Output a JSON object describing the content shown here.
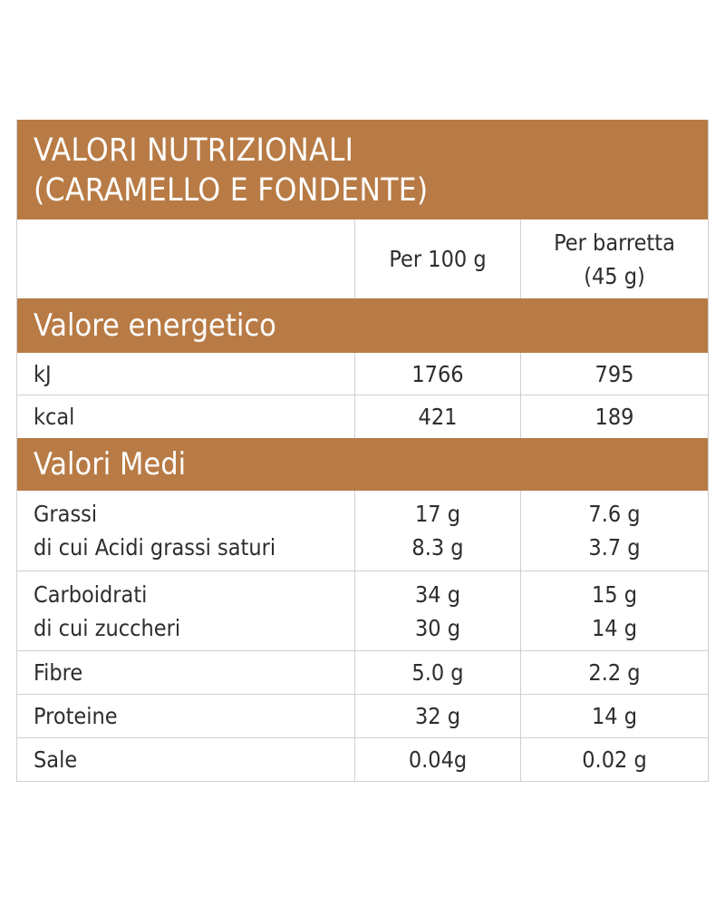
{
  "title": {
    "line1": "VALORI NUTRIZIONALI",
    "line2": "(CARAMELLO E FONDENTE)"
  },
  "columns": {
    "per_100g": "Per 100 g",
    "per_bar_line1": "Per barretta",
    "per_bar_line2": "(45 g)"
  },
  "energy": {
    "heading": "Valore energetico",
    "rows": [
      {
        "label": "kJ",
        "per_100g": "1766",
        "per_bar": "795"
      },
      {
        "label": "kcal",
        "per_100g": "421",
        "per_bar": "189"
      }
    ]
  },
  "averages": {
    "heading": "Valori Medi",
    "rows": [
      {
        "label": "Grassi",
        "per_100g": "17 g",
        "per_bar": "7.6 g",
        "sub_label": "di cui Acidi grassi saturi",
        "sub_per_100g": "8.3 g",
        "sub_per_bar": "3.7 g"
      },
      {
        "label": "Carboidrati",
        "per_100g": "34 g",
        "per_bar": "15 g",
        "sub_label": "di cui zuccheri",
        "sub_per_100g": "30 g",
        "sub_per_bar": "14 g"
      },
      {
        "label": "Fibre",
        "per_100g": "5.0 g",
        "per_bar": "2.2 g"
      },
      {
        "label": "Proteine",
        "per_100g": "32 g",
        "per_bar": "14 g"
      },
      {
        "label": "Sale",
        "per_100g": "0.04g",
        "per_bar": "0.02 g"
      }
    ]
  },
  "colors": {
    "band": "#b87b45",
    "band_text": "#ffffff",
    "text": "#2e2e2e",
    "grid": "#cfcfcf"
  }
}
